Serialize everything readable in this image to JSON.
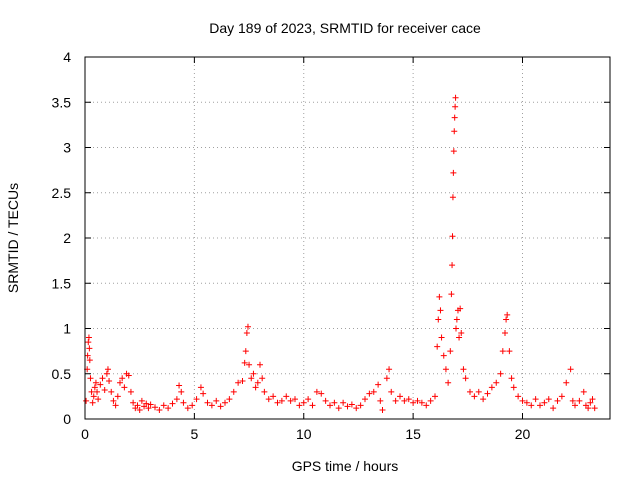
{
  "chart_data": {
    "type": "scatter",
    "title": "Day 189 of 2023, SRMTID for receiver cace",
    "xlabel": "GPS time / hours",
    "ylabel": "SRMTID / TECUs",
    "xlim": [
      0,
      24
    ],
    "ylim": [
      0,
      4
    ],
    "xticks": [
      0,
      5,
      10,
      15,
      20
    ],
    "xtick_labels": [
      "0",
      "5",
      "10",
      "15",
      "20"
    ],
    "yticks": [
      0,
      0.5,
      1,
      1.5,
      2,
      2.5,
      3,
      3.5,
      4
    ],
    "ytick_labels": [
      "0",
      "0.5",
      "1",
      "1.5",
      "2",
      "2.5",
      "3",
      "3.5",
      "4"
    ],
    "grid": true,
    "marker": "+",
    "series": [
      {
        "name": "SRMTID",
        "color": "#ff0000",
        "points": [
          [
            0.05,
            0.2
          ],
          [
            0.1,
            0.55
          ],
          [
            0.12,
            0.7
          ],
          [
            0.15,
            0.85
          ],
          [
            0.18,
            0.9
          ],
          [
            0.2,
            0.78
          ],
          [
            0.22,
            0.65
          ],
          [
            0.25,
            0.45
          ],
          [
            0.3,
            0.3
          ],
          [
            0.35,
            0.18
          ],
          [
            0.4,
            0.25
          ],
          [
            0.45,
            0.35
          ],
          [
            0.5,
            0.4
          ],
          [
            0.55,
            0.3
          ],
          [
            0.6,
            0.22
          ],
          [
            0.7,
            0.38
          ],
          [
            0.8,
            0.45
          ],
          [
            0.9,
            0.32
          ],
          [
            1.0,
            0.5
          ],
          [
            1.05,
            0.55
          ],
          [
            1.1,
            0.42
          ],
          [
            1.2,
            0.3
          ],
          [
            1.3,
            0.2
          ],
          [
            1.4,
            0.15
          ],
          [
            1.5,
            0.25
          ],
          [
            1.6,
            0.4
          ],
          [
            1.7,
            0.45
          ],
          [
            1.8,
            0.35
          ],
          [
            1.9,
            0.5
          ],
          [
            2.0,
            0.48
          ],
          [
            2.1,
            0.3
          ],
          [
            2.2,
            0.18
          ],
          [
            2.3,
            0.12
          ],
          [
            2.4,
            0.15
          ],
          [
            2.5,
            0.1
          ],
          [
            2.6,
            0.2
          ],
          [
            2.7,
            0.14
          ],
          [
            2.8,
            0.17
          ],
          [
            2.9,
            0.12
          ],
          [
            3.0,
            0.16
          ],
          [
            3.2,
            0.13
          ],
          [
            3.4,
            0.1
          ],
          [
            3.6,
            0.15
          ],
          [
            3.8,
            0.12
          ],
          [
            4.0,
            0.17
          ],
          [
            4.2,
            0.22
          ],
          [
            4.3,
            0.37
          ],
          [
            4.4,
            0.3
          ],
          [
            4.5,
            0.18
          ],
          [
            4.7,
            0.12
          ],
          [
            4.9,
            0.15
          ],
          [
            5.1,
            0.22
          ],
          [
            5.3,
            0.35
          ],
          [
            5.4,
            0.28
          ],
          [
            5.6,
            0.18
          ],
          [
            5.8,
            0.15
          ],
          [
            6.0,
            0.2
          ],
          [
            6.2,
            0.14
          ],
          [
            6.4,
            0.18
          ],
          [
            6.6,
            0.22
          ],
          [
            6.8,
            0.3
          ],
          [
            7.0,
            0.4
          ],
          [
            7.2,
            0.42
          ],
          [
            7.3,
            0.62
          ],
          [
            7.35,
            0.75
          ],
          [
            7.4,
            0.95
          ],
          [
            7.45,
            1.02
          ],
          [
            7.5,
            0.6
          ],
          [
            7.6,
            0.45
          ],
          [
            7.7,
            0.5
          ],
          [
            7.8,
            0.35
          ],
          [
            7.9,
            0.4
          ],
          [
            8.0,
            0.6
          ],
          [
            8.1,
            0.45
          ],
          [
            8.2,
            0.3
          ],
          [
            8.4,
            0.22
          ],
          [
            8.6,
            0.25
          ],
          [
            8.8,
            0.18
          ],
          [
            9.0,
            0.2
          ],
          [
            9.2,
            0.25
          ],
          [
            9.4,
            0.2
          ],
          [
            9.6,
            0.22
          ],
          [
            9.8,
            0.15
          ],
          [
            10.0,
            0.18
          ],
          [
            10.2,
            0.22
          ],
          [
            10.4,
            0.15
          ],
          [
            10.6,
            0.3
          ],
          [
            10.8,
            0.28
          ],
          [
            11.0,
            0.2
          ],
          [
            11.2,
            0.15
          ],
          [
            11.4,
            0.18
          ],
          [
            11.6,
            0.12
          ],
          [
            11.8,
            0.18
          ],
          [
            12.0,
            0.14
          ],
          [
            12.2,
            0.16
          ],
          [
            12.4,
            0.12
          ],
          [
            12.6,
            0.15
          ],
          [
            12.8,
            0.22
          ],
          [
            13.0,
            0.28
          ],
          [
            13.2,
            0.3
          ],
          [
            13.4,
            0.38
          ],
          [
            13.5,
            0.2
          ],
          [
            13.6,
            0.1
          ],
          [
            13.8,
            0.45
          ],
          [
            13.9,
            0.55
          ],
          [
            14.0,
            0.3
          ],
          [
            14.2,
            0.2
          ],
          [
            14.4,
            0.25
          ],
          [
            14.6,
            0.2
          ],
          [
            14.8,
            0.22
          ],
          [
            15.0,
            0.18
          ],
          [
            15.2,
            0.2
          ],
          [
            15.4,
            0.18
          ],
          [
            15.6,
            0.15
          ],
          [
            15.8,
            0.2
          ],
          [
            16.0,
            0.25
          ],
          [
            16.1,
            0.8
          ],
          [
            16.15,
            1.1
          ],
          [
            16.2,
            1.35
          ],
          [
            16.25,
            1.2
          ],
          [
            16.3,
            0.9
          ],
          [
            16.4,
            0.7
          ],
          [
            16.5,
            0.55
          ],
          [
            16.6,
            0.4
          ],
          [
            16.7,
            0.75
          ],
          [
            16.75,
            1.38
          ],
          [
            16.78,
            1.7
          ],
          [
            16.8,
            2.02
          ],
          [
            16.82,
            2.45
          ],
          [
            16.84,
            2.72
          ],
          [
            16.86,
            2.96
          ],
          [
            16.88,
            3.18
          ],
          [
            16.9,
            3.33
          ],
          [
            16.92,
            3.45
          ],
          [
            16.94,
            3.55
          ],
          [
            16.96,
            1.0
          ],
          [
            17.0,
            1.1
          ],
          [
            17.05,
            1.2
          ],
          [
            17.1,
            0.9
          ],
          [
            17.15,
            1.22
          ],
          [
            17.2,
            0.95
          ],
          [
            17.3,
            0.55
          ],
          [
            17.4,
            0.45
          ],
          [
            17.6,
            0.3
          ],
          [
            17.8,
            0.25
          ],
          [
            18.0,
            0.3
          ],
          [
            18.2,
            0.22
          ],
          [
            18.4,
            0.28
          ],
          [
            18.6,
            0.35
          ],
          [
            18.8,
            0.4
          ],
          [
            19.0,
            0.5
          ],
          [
            19.1,
            0.75
          ],
          [
            19.2,
            0.95
          ],
          [
            19.25,
            1.1
          ],
          [
            19.3,
            1.15
          ],
          [
            19.4,
            0.75
          ],
          [
            19.5,
            0.45
          ],
          [
            19.6,
            0.35
          ],
          [
            19.8,
            0.25
          ],
          [
            20.0,
            0.2
          ],
          [
            20.2,
            0.18
          ],
          [
            20.4,
            0.15
          ],
          [
            20.6,
            0.22
          ],
          [
            20.8,
            0.15
          ],
          [
            21.0,
            0.18
          ],
          [
            21.2,
            0.22
          ],
          [
            21.4,
            0.12
          ],
          [
            21.6,
            0.2
          ],
          [
            21.8,
            0.25
          ],
          [
            22.0,
            0.4
          ],
          [
            22.2,
            0.55
          ],
          [
            22.3,
            0.2
          ],
          [
            22.4,
            0.15
          ],
          [
            22.6,
            0.2
          ],
          [
            22.8,
            0.3
          ],
          [
            22.9,
            0.15
          ],
          [
            23.0,
            0.12
          ],
          [
            23.1,
            0.18
          ],
          [
            23.2,
            0.22
          ],
          [
            23.3,
            0.12
          ]
        ]
      }
    ]
  }
}
